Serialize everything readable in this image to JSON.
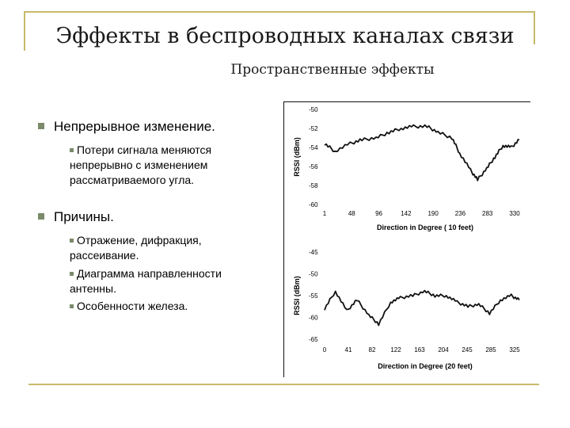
{
  "slide": {
    "title": "Эффекты в беспроводных каналах связи",
    "subtitle": "Пространственные эффекты"
  },
  "bullets": [
    {
      "text": "Непрерывное изменение.",
      "sub": [
        "Потери сигнала меняются непрерывно с изменением рассматриваемого угла."
      ]
    },
    {
      "text": "Причины.",
      "sub": [
        "Отражение, дифракция, рассеивание.",
        "Диаграмма направленности антенны.",
        "Особенности железа."
      ]
    }
  ],
  "chart_data": [
    {
      "type": "line",
      "ylabel": "RSSI (dBm)",
      "xlabel": "Direction in Degree ( 10 feet)",
      "yticks": [
        "-50",
        "-52",
        "-54",
        "-56",
        "-58",
        "-60"
      ],
      "ylim": [
        -60,
        -50
      ],
      "xticks": [
        "1",
        "48",
        "96",
        "142",
        "190",
        "236",
        "283",
        "330"
      ],
      "xlim": [
        1,
        360
      ],
      "x": [
        1,
        20,
        48,
        70,
        96,
        120,
        142,
        165,
        190,
        210,
        236,
        250,
        270,
        283,
        300,
        315,
        330,
        345,
        360
      ],
      "y": [
        -53.6,
        -54.4,
        -53.6,
        -53.2,
        -53.0,
        -52.4,
        -52.0,
        -51.8,
        -51.8,
        -52.4,
        -53.0,
        -54.6,
        -56.4,
        -57.4,
        -56.2,
        -55.0,
        -53.8,
        -54.0,
        -53.2
      ]
    },
    {
      "type": "line",
      "ylabel": "RSSI (dBm)",
      "xlabel": "Direction in Degree (20 feet)",
      "yticks": [
        "-45",
        "-50",
        "-55",
        "-60",
        "-65"
      ],
      "ylim": [
        -65,
        -45
      ],
      "xticks": [
        "0",
        "41",
        "82",
        "122",
        "163",
        "204",
        "245",
        "285",
        "325"
      ],
      "xlim": [
        0,
        360
      ],
      "x": [
        0,
        20,
        41,
        60,
        82,
        100,
        122,
        140,
        163,
        185,
        204,
        225,
        245,
        265,
        285,
        305,
        325,
        345,
        360
      ],
      "y": [
        -58.0,
        -54.0,
        -58.5,
        -56.0,
        -59.5,
        -61.5,
        -56.5,
        -55.5,
        -55.0,
        -54.0,
        -55.0,
        -55.0,
        -56.5,
        -57.5,
        -57.0,
        -59.0,
        -56.0,
        -55.0,
        -56.0
      ]
    }
  ]
}
